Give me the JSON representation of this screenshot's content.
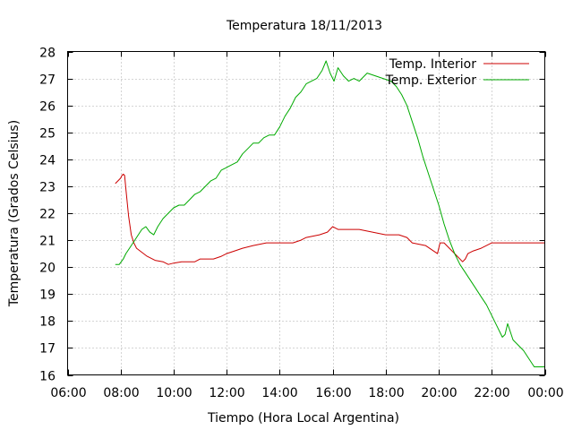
{
  "chart_data": {
    "type": "line",
    "title": "Temperatura 18/11/2013",
    "xlabel": "Tiempo (Hora Local Argentina)",
    "ylabel": "Temperatura (Grados Celsius)",
    "xlim": [
      6,
      24
    ],
    "ylim": [
      16,
      28
    ],
    "grid": true,
    "legend_position": "top-right",
    "x_ticks": [
      {
        "value": 6,
        "label": "06:00"
      },
      {
        "value": 8,
        "label": "08:00"
      },
      {
        "value": 10,
        "label": "10:00"
      },
      {
        "value": 12,
        "label": "12:00"
      },
      {
        "value": 14,
        "label": "14:00"
      },
      {
        "value": 16,
        "label": "16:00"
      },
      {
        "value": 18,
        "label": "18:00"
      },
      {
        "value": 20,
        "label": "20:00"
      },
      {
        "value": 22,
        "label": "22:00"
      },
      {
        "value": 24,
        "label": "00:00"
      }
    ],
    "y_ticks": [
      {
        "value": 16,
        "label": "16"
      },
      {
        "value": 17,
        "label": "17"
      },
      {
        "value": 18,
        "label": "18"
      },
      {
        "value": 19,
        "label": "19"
      },
      {
        "value": 20,
        "label": "20"
      },
      {
        "value": 21,
        "label": "21"
      },
      {
        "value": 22,
        "label": "22"
      },
      {
        "value": 23,
        "label": "23"
      },
      {
        "value": 24,
        "label": "24"
      },
      {
        "value": 25,
        "label": "25"
      },
      {
        "value": 26,
        "label": "26"
      },
      {
        "value": 27,
        "label": "27"
      },
      {
        "value": 28,
        "label": "28"
      }
    ],
    "series": [
      {
        "name": "Temp. Interior",
        "color": "#cc0000",
        "points": [
          [
            7.8,
            23.1
          ],
          [
            7.9,
            23.2
          ],
          [
            8.0,
            23.3
          ],
          [
            8.05,
            23.4
          ],
          [
            8.1,
            23.45
          ],
          [
            8.15,
            23.4
          ],
          [
            8.2,
            22.9
          ],
          [
            8.3,
            21.9
          ],
          [
            8.4,
            21.2
          ],
          [
            8.5,
            20.9
          ],
          [
            8.6,
            20.7
          ],
          [
            8.8,
            20.55
          ],
          [
            9.0,
            20.4
          ],
          [
            9.3,
            20.25
          ],
          [
            9.6,
            20.2
          ],
          [
            9.8,
            20.1
          ],
          [
            10.0,
            20.15
          ],
          [
            10.3,
            20.2
          ],
          [
            10.8,
            20.2
          ],
          [
            11.0,
            20.3
          ],
          [
            11.5,
            20.3
          ],
          [
            11.8,
            20.4
          ],
          [
            12.0,
            20.5
          ],
          [
            12.3,
            20.6
          ],
          [
            12.6,
            20.7
          ],
          [
            13.0,
            20.8
          ],
          [
            13.5,
            20.9
          ],
          [
            14.0,
            20.9
          ],
          [
            14.5,
            20.9
          ],
          [
            14.8,
            21.0
          ],
          [
            15.0,
            21.1
          ],
          [
            15.5,
            21.2
          ],
          [
            15.8,
            21.3
          ],
          [
            16.0,
            21.5
          ],
          [
            16.2,
            21.4
          ],
          [
            17.0,
            21.4
          ],
          [
            17.5,
            21.3
          ],
          [
            18.0,
            21.2
          ],
          [
            18.5,
            21.2
          ],
          [
            18.8,
            21.1
          ],
          [
            19.0,
            20.9
          ],
          [
            19.5,
            20.8
          ],
          [
            19.8,
            20.6
          ],
          [
            19.95,
            20.5
          ],
          [
            20.05,
            20.9
          ],
          [
            20.2,
            20.9
          ],
          [
            20.4,
            20.7
          ],
          [
            20.7,
            20.4
          ],
          [
            20.9,
            20.2
          ],
          [
            21.0,
            20.3
          ],
          [
            21.1,
            20.5
          ],
          [
            21.3,
            20.6
          ],
          [
            21.6,
            20.7
          ],
          [
            21.8,
            20.8
          ],
          [
            22.0,
            20.9
          ],
          [
            22.5,
            20.9
          ],
          [
            23.0,
            20.9
          ],
          [
            23.5,
            20.9
          ],
          [
            24.0,
            20.9
          ]
        ]
      },
      {
        "name": "Temp. Exterior",
        "color": "#00aa00",
        "points": [
          [
            7.8,
            20.1
          ],
          [
            7.95,
            20.1
          ],
          [
            8.1,
            20.3
          ],
          [
            8.2,
            20.5
          ],
          [
            8.4,
            20.8
          ],
          [
            8.6,
            21.1
          ],
          [
            8.8,
            21.4
          ],
          [
            8.95,
            21.5
          ],
          [
            9.1,
            21.3
          ],
          [
            9.25,
            21.2
          ],
          [
            9.4,
            21.5
          ],
          [
            9.6,
            21.8
          ],
          [
            9.8,
            22.0
          ],
          [
            10.0,
            22.2
          ],
          [
            10.2,
            22.3
          ],
          [
            10.4,
            22.3
          ],
          [
            10.6,
            22.5
          ],
          [
            10.8,
            22.7
          ],
          [
            11.0,
            22.8
          ],
          [
            11.2,
            23.0
          ],
          [
            11.4,
            23.2
          ],
          [
            11.6,
            23.3
          ],
          [
            11.8,
            23.6
          ],
          [
            12.0,
            23.7
          ],
          [
            12.2,
            23.8
          ],
          [
            12.4,
            23.9
          ],
          [
            12.6,
            24.2
          ],
          [
            12.8,
            24.4
          ],
          [
            13.0,
            24.6
          ],
          [
            13.2,
            24.6
          ],
          [
            13.4,
            24.8
          ],
          [
            13.6,
            24.9
          ],
          [
            13.8,
            24.9
          ],
          [
            14.0,
            25.2
          ],
          [
            14.2,
            25.6
          ],
          [
            14.4,
            25.9
          ],
          [
            14.6,
            26.3
          ],
          [
            14.8,
            26.5
          ],
          [
            15.0,
            26.8
          ],
          [
            15.2,
            26.9
          ],
          [
            15.4,
            27.0
          ],
          [
            15.6,
            27.3
          ],
          [
            15.75,
            27.65
          ],
          [
            15.9,
            27.2
          ],
          [
            16.05,
            26.9
          ],
          [
            16.2,
            27.4
          ],
          [
            16.4,
            27.1
          ],
          [
            16.6,
            26.9
          ],
          [
            16.8,
            27.0
          ],
          [
            17.0,
            26.9
          ],
          [
            17.3,
            27.2
          ],
          [
            17.6,
            27.1
          ],
          [
            17.9,
            27.0
          ],
          [
            18.2,
            26.9
          ],
          [
            18.4,
            26.7
          ],
          [
            18.6,
            26.4
          ],
          [
            18.8,
            26.0
          ],
          [
            19.0,
            25.4
          ],
          [
            19.2,
            24.8
          ],
          [
            19.4,
            24.1
          ],
          [
            19.6,
            23.5
          ],
          [
            19.8,
            22.9
          ],
          [
            20.0,
            22.3
          ],
          [
            20.2,
            21.6
          ],
          [
            20.4,
            21.0
          ],
          [
            20.6,
            20.5
          ],
          [
            20.8,
            20.1
          ],
          [
            21.0,
            19.8
          ],
          [
            21.2,
            19.5
          ],
          [
            21.4,
            19.2
          ],
          [
            21.6,
            18.9
          ],
          [
            21.8,
            18.6
          ],
          [
            22.0,
            18.2
          ],
          [
            22.2,
            17.8
          ],
          [
            22.4,
            17.4
          ],
          [
            22.5,
            17.5
          ],
          [
            22.6,
            17.9
          ],
          [
            22.8,
            17.3
          ],
          [
            23.0,
            17.1
          ],
          [
            23.2,
            16.9
          ],
          [
            23.4,
            16.6
          ],
          [
            23.6,
            16.3
          ],
          [
            24.0,
            16.3
          ]
        ]
      }
    ]
  }
}
